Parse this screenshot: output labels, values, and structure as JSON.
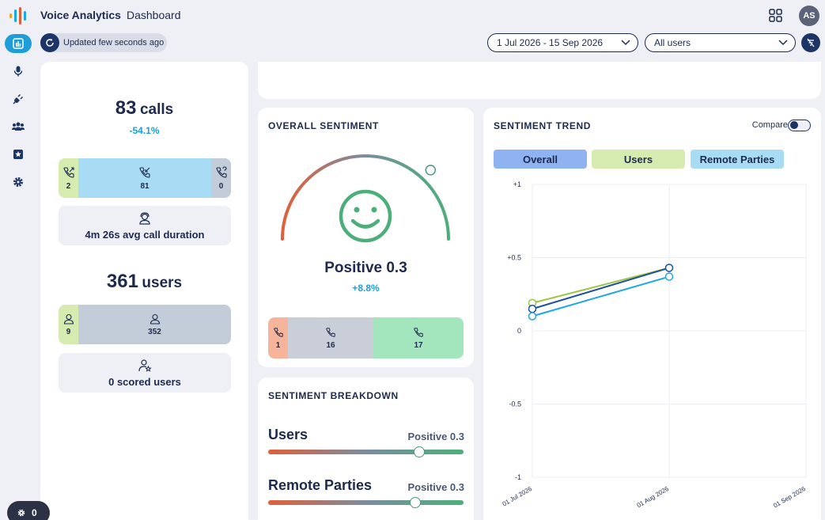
{
  "header": {
    "app_title": "Voice Analytics",
    "page_title": "Dashboard",
    "avatar_initials": "AS"
  },
  "toolbar": {
    "refresh_text": "Updated few seconds ago",
    "date_range": "1 Jul 2026 - 15 Sep 2026",
    "user_filter": "All users"
  },
  "sidebar": {
    "items": [
      {
        "name": "dashboard",
        "icon": "bar-chart-icon",
        "active": true
      },
      {
        "name": "recordings",
        "icon": "microphone-icon",
        "active": false
      },
      {
        "name": "integrations",
        "icon": "plug-icon",
        "active": false
      },
      {
        "name": "users",
        "icon": "users-icon",
        "active": false
      },
      {
        "name": "scoring",
        "icon": "star-icon",
        "active": false
      },
      {
        "name": "settings",
        "icon": "gear-icon",
        "active": false
      }
    ]
  },
  "summary": {
    "calls_count": "83",
    "calls_unit": "calls",
    "calls_delta": "-54.1%",
    "call_segments": {
      "outbound": "2",
      "inbound": "81",
      "unknown": "0"
    },
    "avg_duration": "4m 26s avg call duration",
    "users_count": "361",
    "users_unit": "users",
    "user_segments": {
      "active": "9",
      "inactive": "352"
    },
    "scored_users": "0 scored users"
  },
  "overall_sentiment": {
    "title": "OVERALL SENTIMENT",
    "label": "Positive 0.3",
    "delta": "+8.8%",
    "gauge_value": 0.3,
    "segments": {
      "negative": "1",
      "neutral": "16",
      "positive": "17"
    }
  },
  "sentiment_breakdown": {
    "title": "SENTIMENT BREAKDOWN",
    "rows": [
      {
        "label": "Users",
        "value": "Positive 0.3",
        "score": 0.3
      },
      {
        "label": "Remote Parties",
        "value": "Positive 0.3",
        "score": 0.26
      }
    ]
  },
  "sentiment_trend": {
    "title": "SENTIMENT TREND",
    "compare_label": "Compare",
    "tabs": [
      {
        "label": "Overall",
        "color": "#8fb2f0"
      },
      {
        "label": "Users",
        "color": "#d6ebb0"
      },
      {
        "label": "Remote Parties",
        "color": "#a8dcf5"
      }
    ]
  },
  "chart_data": {
    "type": "line",
    "title": "",
    "xlabel": "",
    "ylabel": "",
    "x": [
      "01 Jul 2026",
      "01 Aug 2026"
    ],
    "x_ticks": [
      "01 Jul 2026",
      "01 Aug 2026",
      "01 Sep 2026"
    ],
    "y_ticks": [
      "+1",
      "+0.5",
      "0",
      "-0.5",
      "-1"
    ],
    "ylim": [
      -1,
      1
    ],
    "grid": true,
    "series": [
      {
        "values": [
          0.19,
          0.43
        ],
        "color": "#9bc53d"
      },
      {
        "values": [
          0.15,
          0.43
        ],
        "color": "#1e4fa3"
      },
      {
        "values": [
          0.1,
          0.37
        ],
        "color": "#1ea7e6"
      }
    ]
  },
  "support": {
    "count": "0"
  },
  "colors": {
    "accent": "#1e9ed8",
    "navy": "#1d3467",
    "positive": "#4caf7a",
    "negative": "#e0603a"
  }
}
